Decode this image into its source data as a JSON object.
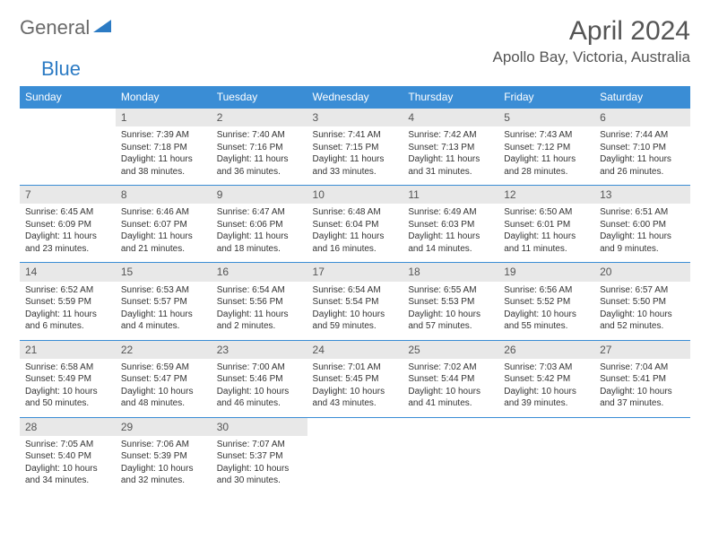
{
  "logo": {
    "text1": "General",
    "text2": "Blue"
  },
  "title": "April 2024",
  "location": "Apollo Bay, Victoria, Australia",
  "colors": {
    "header_bg": "#3a8dd5",
    "header_fg": "#ffffff",
    "daynum_bg": "#e8e8e8",
    "border": "#3a8dd5",
    "text": "#333333",
    "logo_gray": "#6a6a6a",
    "logo_blue": "#2c7bc4"
  },
  "weekdays": [
    "Sunday",
    "Monday",
    "Tuesday",
    "Wednesday",
    "Thursday",
    "Friday",
    "Saturday"
  ],
  "weeks": [
    [
      null,
      {
        "n": "1",
        "sr": "Sunrise: 7:39 AM",
        "ss": "Sunset: 7:18 PM",
        "dl": "Daylight: 11 hours and 38 minutes."
      },
      {
        "n": "2",
        "sr": "Sunrise: 7:40 AM",
        "ss": "Sunset: 7:16 PM",
        "dl": "Daylight: 11 hours and 36 minutes."
      },
      {
        "n": "3",
        "sr": "Sunrise: 7:41 AM",
        "ss": "Sunset: 7:15 PM",
        "dl": "Daylight: 11 hours and 33 minutes."
      },
      {
        "n": "4",
        "sr": "Sunrise: 7:42 AM",
        "ss": "Sunset: 7:13 PM",
        "dl": "Daylight: 11 hours and 31 minutes."
      },
      {
        "n": "5",
        "sr": "Sunrise: 7:43 AM",
        "ss": "Sunset: 7:12 PM",
        "dl": "Daylight: 11 hours and 28 minutes."
      },
      {
        "n": "6",
        "sr": "Sunrise: 7:44 AM",
        "ss": "Sunset: 7:10 PM",
        "dl": "Daylight: 11 hours and 26 minutes."
      }
    ],
    [
      {
        "n": "7",
        "sr": "Sunrise: 6:45 AM",
        "ss": "Sunset: 6:09 PM",
        "dl": "Daylight: 11 hours and 23 minutes."
      },
      {
        "n": "8",
        "sr": "Sunrise: 6:46 AM",
        "ss": "Sunset: 6:07 PM",
        "dl": "Daylight: 11 hours and 21 minutes."
      },
      {
        "n": "9",
        "sr": "Sunrise: 6:47 AM",
        "ss": "Sunset: 6:06 PM",
        "dl": "Daylight: 11 hours and 18 minutes."
      },
      {
        "n": "10",
        "sr": "Sunrise: 6:48 AM",
        "ss": "Sunset: 6:04 PM",
        "dl": "Daylight: 11 hours and 16 minutes."
      },
      {
        "n": "11",
        "sr": "Sunrise: 6:49 AM",
        "ss": "Sunset: 6:03 PM",
        "dl": "Daylight: 11 hours and 14 minutes."
      },
      {
        "n": "12",
        "sr": "Sunrise: 6:50 AM",
        "ss": "Sunset: 6:01 PM",
        "dl": "Daylight: 11 hours and 11 minutes."
      },
      {
        "n": "13",
        "sr": "Sunrise: 6:51 AM",
        "ss": "Sunset: 6:00 PM",
        "dl": "Daylight: 11 hours and 9 minutes."
      }
    ],
    [
      {
        "n": "14",
        "sr": "Sunrise: 6:52 AM",
        "ss": "Sunset: 5:59 PM",
        "dl": "Daylight: 11 hours and 6 minutes."
      },
      {
        "n": "15",
        "sr": "Sunrise: 6:53 AM",
        "ss": "Sunset: 5:57 PM",
        "dl": "Daylight: 11 hours and 4 minutes."
      },
      {
        "n": "16",
        "sr": "Sunrise: 6:54 AM",
        "ss": "Sunset: 5:56 PM",
        "dl": "Daylight: 11 hours and 2 minutes."
      },
      {
        "n": "17",
        "sr": "Sunrise: 6:54 AM",
        "ss": "Sunset: 5:54 PM",
        "dl": "Daylight: 10 hours and 59 minutes."
      },
      {
        "n": "18",
        "sr": "Sunrise: 6:55 AM",
        "ss": "Sunset: 5:53 PM",
        "dl": "Daylight: 10 hours and 57 minutes."
      },
      {
        "n": "19",
        "sr": "Sunrise: 6:56 AM",
        "ss": "Sunset: 5:52 PM",
        "dl": "Daylight: 10 hours and 55 minutes."
      },
      {
        "n": "20",
        "sr": "Sunrise: 6:57 AM",
        "ss": "Sunset: 5:50 PM",
        "dl": "Daylight: 10 hours and 52 minutes."
      }
    ],
    [
      {
        "n": "21",
        "sr": "Sunrise: 6:58 AM",
        "ss": "Sunset: 5:49 PM",
        "dl": "Daylight: 10 hours and 50 minutes."
      },
      {
        "n": "22",
        "sr": "Sunrise: 6:59 AM",
        "ss": "Sunset: 5:47 PM",
        "dl": "Daylight: 10 hours and 48 minutes."
      },
      {
        "n": "23",
        "sr": "Sunrise: 7:00 AM",
        "ss": "Sunset: 5:46 PM",
        "dl": "Daylight: 10 hours and 46 minutes."
      },
      {
        "n": "24",
        "sr": "Sunrise: 7:01 AM",
        "ss": "Sunset: 5:45 PM",
        "dl": "Daylight: 10 hours and 43 minutes."
      },
      {
        "n": "25",
        "sr": "Sunrise: 7:02 AM",
        "ss": "Sunset: 5:44 PM",
        "dl": "Daylight: 10 hours and 41 minutes."
      },
      {
        "n": "26",
        "sr": "Sunrise: 7:03 AM",
        "ss": "Sunset: 5:42 PM",
        "dl": "Daylight: 10 hours and 39 minutes."
      },
      {
        "n": "27",
        "sr": "Sunrise: 7:04 AM",
        "ss": "Sunset: 5:41 PM",
        "dl": "Daylight: 10 hours and 37 minutes."
      }
    ],
    [
      {
        "n": "28",
        "sr": "Sunrise: 7:05 AM",
        "ss": "Sunset: 5:40 PM",
        "dl": "Daylight: 10 hours and 34 minutes."
      },
      {
        "n": "29",
        "sr": "Sunrise: 7:06 AM",
        "ss": "Sunset: 5:39 PM",
        "dl": "Daylight: 10 hours and 32 minutes."
      },
      {
        "n": "30",
        "sr": "Sunrise: 7:07 AM",
        "ss": "Sunset: 5:37 PM",
        "dl": "Daylight: 10 hours and 30 minutes."
      },
      null,
      null,
      null,
      null
    ]
  ]
}
